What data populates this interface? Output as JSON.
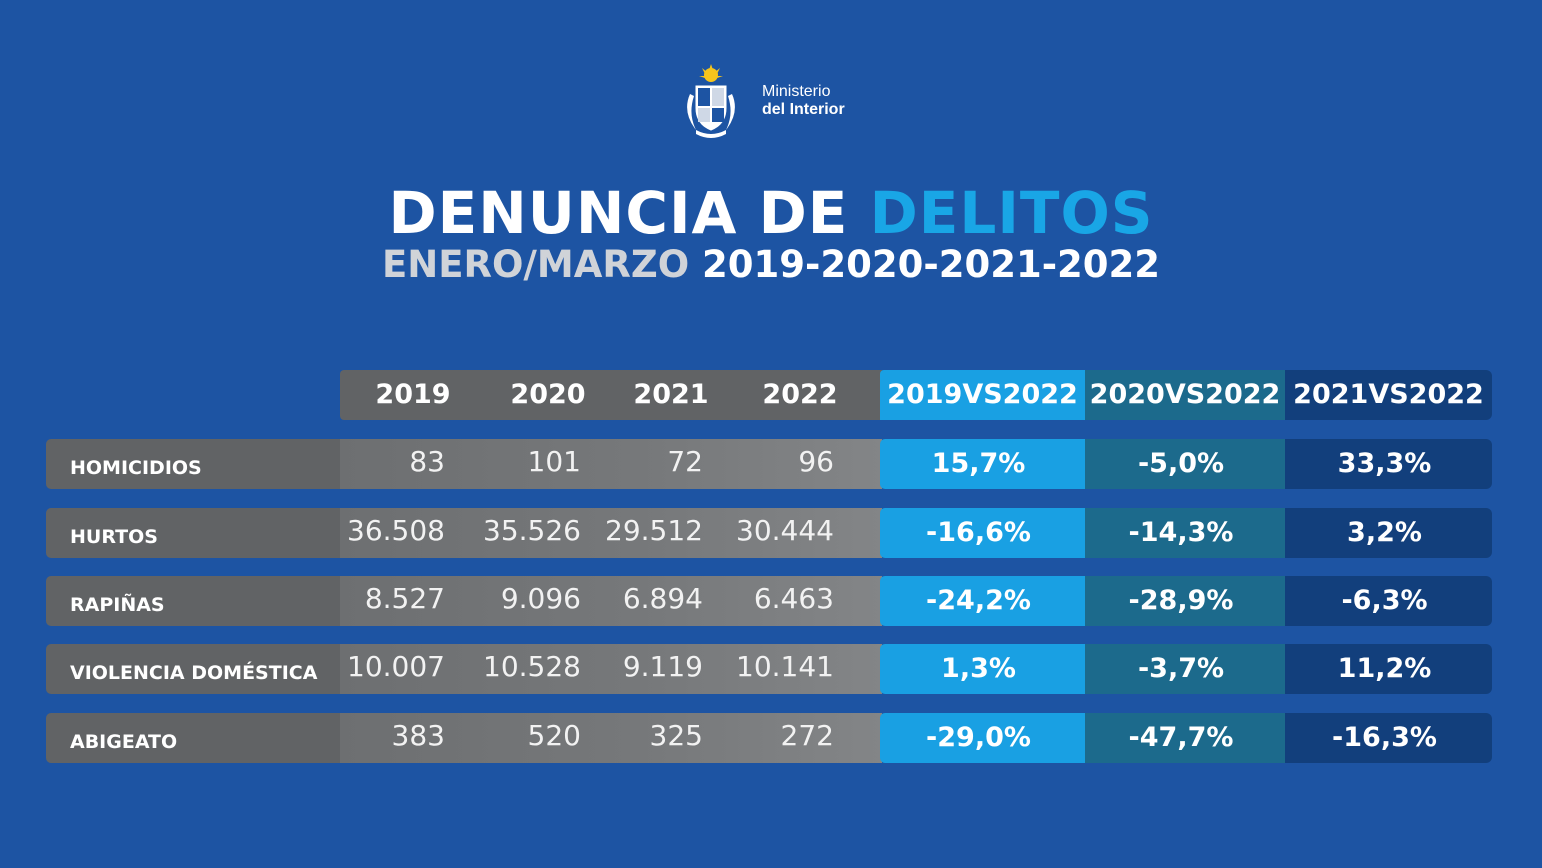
{
  "logo": {
    "line1": "Ministerio",
    "line2": "del Interior",
    "emblem": "uruguay-coat-of-arms"
  },
  "title": {
    "main": "DENUNCIA DE ",
    "accent": "DELITOS",
    "sub_grey": "ENERO/MARZO ",
    "sub_years": "2019-2020-2021-2022"
  },
  "colors": {
    "background": "#1d54a3",
    "grey_dark": "#616365",
    "grey_mid": "#6d6f71",
    "grey_light": "#838587",
    "accent_light": "#19a0e3",
    "accent_teal": "#1c6a8c",
    "accent_navy": "#123f7c"
  },
  "table": {
    "headers": [
      "2019",
      "2020",
      "2021",
      "2022",
      "2019VS2022",
      "2020VS2022",
      "2021VS2022"
    ],
    "rows": [
      {
        "label": "HOMICIDIOS",
        "values": [
          "83",
          "101",
          "72",
          "96"
        ],
        "changes": [
          "15,7%",
          "-5,0%",
          "33,3%"
        ]
      },
      {
        "label": "HURTOS",
        "values": [
          "36.508",
          "35.526",
          "29.512",
          "30.444"
        ],
        "changes": [
          "-16,6%",
          "-14,3%",
          "3,2%"
        ]
      },
      {
        "label": "RAPIÑAS",
        "values": [
          "8.527",
          "9.096",
          "6.894",
          "6.463"
        ],
        "changes": [
          "-24,2%",
          "-28,9%",
          "-6,3%"
        ]
      },
      {
        "label": "VIOLENCIA DOMÉSTICA",
        "values": [
          "10.007",
          "10.528",
          "9.119",
          "10.141"
        ],
        "changes": [
          "1,3%",
          "-3,7%",
          "11,2%"
        ]
      },
      {
        "label": "ABIGEATO",
        "values": [
          "383",
          "520",
          "325",
          "272"
        ],
        "changes": [
          "-29,0%",
          "-47,7%",
          "-16,3%"
        ]
      }
    ]
  }
}
